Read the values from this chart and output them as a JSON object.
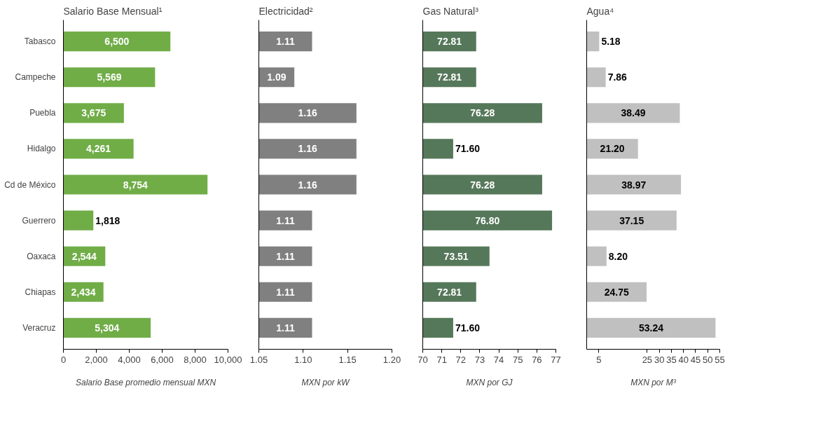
{
  "chart_data": [
    {
      "type": "bar",
      "orientation": "horizontal",
      "title": "Salario Base Mensual¹",
      "xlabel": "Salario Base promedio mensual MXN",
      "categories": [
        "Tabasco",
        "Campeche",
        "Puebla",
        "Hidalgo",
        "Cd de México",
        "Guerrero",
        "Oaxaca",
        "Chiapas",
        "Veracruz"
      ],
      "values": [
        6500,
        5569,
        3675,
        4261,
        8754,
        1818,
        2544,
        2434,
        5304
      ],
      "value_labels": [
        "6,500",
        "5,569",
        "3,675",
        "4,261",
        "8,754",
        "1,818",
        "2,544",
        "2,434",
        "5,304"
      ],
      "color": "#70ad47",
      "xlim": [
        0,
        10000
      ],
      "xticks": [
        0,
        {
          "value": 2000,
          "label": "2,000"
        },
        {
          "value": 4000,
          "label": "4,000"
        },
        {
          "value": 6000,
          "label": "6,000"
        },
        {
          "value": 8000,
          "label": "8,000"
        },
        {
          "value": 10000,
          "label": "10,000"
        }
      ],
      "grid": false
    },
    {
      "type": "bar",
      "orientation": "horizontal",
      "title": "Electricidad²",
      "xlabel": "MXN por kW",
      "categories": [
        null,
        null,
        null,
        null,
        null,
        null,
        null,
        null,
        null
      ],
      "values": [
        1.11,
        1.09,
        1.16,
        1.16,
        1.16,
        1.11,
        1.11,
        1.11,
        1.11
      ],
      "value_labels": [
        "1.11",
        "1.09",
        "1.16",
        "1.16",
        "1.16",
        "1.11",
        "1.11",
        "1.11",
        "1.11"
      ],
      "color": "#808080",
      "xlim": [
        1.05,
        1.2
      ],
      "xticks": [
        1.05,
        {
          "value": 1.1,
          "label": "1.10"
        },
        1.15,
        {
          "value": 1.2,
          "label": "1.20"
        }
      ],
      "grid": false,
      "tick_labels": "x"
    },
    {
      "type": "bar",
      "orientation": "horizontal",
      "title": "Gas Natural³",
      "xlabel": "MXN por GJ",
      "categories": [
        null,
        null,
        null,
        null,
        null,
        null,
        null,
        null,
        null
      ],
      "values": [
        72.81,
        72.81,
        76.28,
        71.6,
        76.28,
        76.8,
        73.51,
        72.81,
        71.6
      ],
      "value_labels": [
        "72.81",
        "72.81",
        "76.28",
        "71.60",
        "76.28",
        "76.80",
        "73.51",
        "72.81",
        "71.60"
      ],
      "color": "#56785a",
      "xlim": [
        70,
        77
      ],
      "xticks": [
        70,
        71,
        72,
        73,
        74,
        75,
        76,
        77
      ],
      "grid": false,
      "tick_labels": "x"
    },
    {
      "type": "bar",
      "orientation": "horizontal",
      "title": "Agua⁴",
      "xlabel": "MXN por M³",
      "categories": [
        null,
        null,
        null,
        null,
        null,
        null,
        null,
        null,
        null
      ],
      "values": [
        5.18,
        7.86,
        38.49,
        21.2,
        38.97,
        37.15,
        8.2,
        24.75,
        53.24
      ],
      "value_labels": [
        "5.18",
        "7.86",
        "38.49",
        "21.20",
        "38.97",
        "37.15",
        "8.20",
        "24.75",
        "53.24"
      ],
      "color": "#c0c0c0",
      "xlim": [
        0,
        55
      ],
      "xticks": [
        5,
        25,
        30,
        35,
        40,
        45,
        50,
        55
      ],
      "grid": false,
      "tick_labels": "x"
    }
  ]
}
